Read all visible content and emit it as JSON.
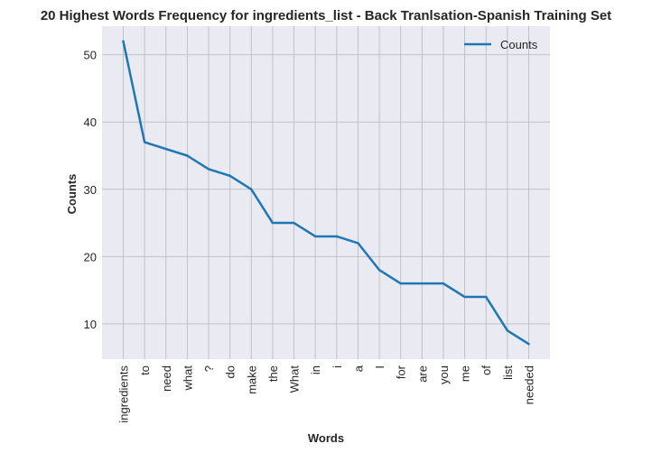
{
  "chart_data": {
    "type": "line",
    "title": "20 Highest Words Frequency for ingredients_list - Back Tranlsation-Spanish Training Set",
    "xlabel": "Words",
    "ylabel": "Counts",
    "categories": [
      "ingredients",
      "to",
      "need",
      "what",
      "?",
      "do",
      "make",
      "the",
      "What",
      "in",
      "i",
      "a",
      "I",
      "for",
      "are",
      "you",
      "me",
      "of",
      "list",
      "needed"
    ],
    "series": [
      {
        "name": "Counts",
        "values": [
          52,
          37,
          36,
          35,
          33,
          32,
          30,
          25,
          25,
          23,
          23,
          22,
          18,
          16,
          16,
          16,
          14,
          14,
          9,
          7
        ],
        "color": "#1f77b4"
      }
    ],
    "ylim": [
      4.75,
      54.25
    ],
    "yticks": [
      10,
      20,
      30,
      40,
      50
    ],
    "grid": true,
    "legend": "top-right",
    "background": "#eaeaf2",
    "grid_color": "#c0c0c8"
  }
}
